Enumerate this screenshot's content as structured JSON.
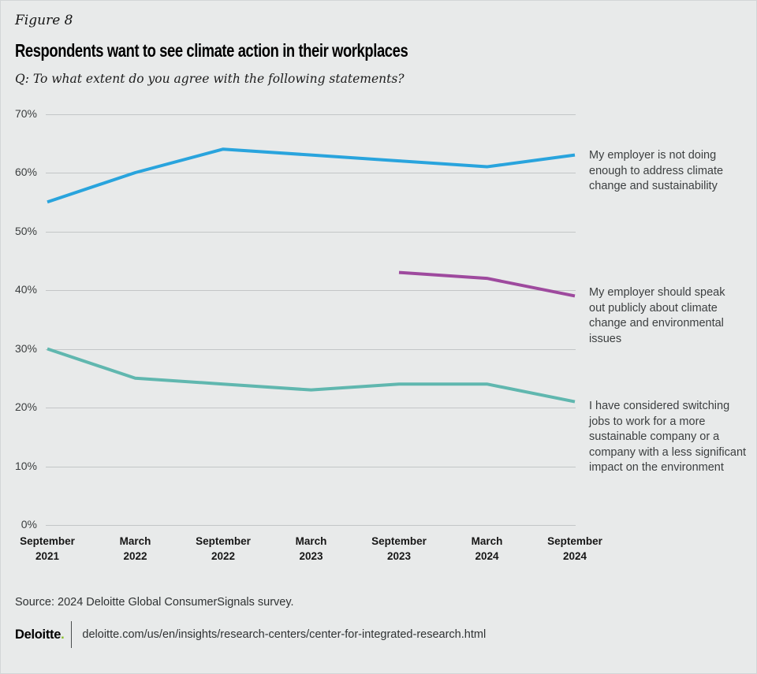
{
  "header": {
    "figure_label": "Figure 8",
    "title": "Respondents want to see climate action in their workplaces",
    "question": "Q: To what extent do you agree with the following statements?"
  },
  "chart_data": {
    "type": "line",
    "x": [
      "September 2021",
      "March 2022",
      "September 2022",
      "March 2023",
      "September 2023",
      "March 2024",
      "September 2024"
    ],
    "x_labels": [
      [
        "September",
        "2021"
      ],
      [
        "March",
        "2022"
      ],
      [
        "September",
        "2022"
      ],
      [
        "March",
        "2023"
      ],
      [
        "September",
        "2023"
      ],
      [
        "March",
        "2024"
      ],
      [
        "September",
        "2024"
      ]
    ],
    "y_ticks": [
      0,
      10,
      20,
      30,
      40,
      50,
      60,
      70
    ],
    "y_tick_labels": [
      "0%",
      "10%",
      "20%",
      "30%",
      "40%",
      "50%",
      "60%",
      "70%"
    ],
    "ylim": [
      0,
      70
    ],
    "unit": "%",
    "grid": "horizontal",
    "legend_position": "right-annotations",
    "series": [
      {
        "name": "employer-not-doing-enough",
        "label": "My employer is not doing enough to address climate change and sustainability",
        "color": "#29a4dd",
        "values": [
          55,
          60,
          64,
          63,
          62,
          61,
          63
        ]
      },
      {
        "name": "employer-should-speak-out",
        "label": "My employer should speak out publicly about climate change and environmental issues",
        "color": "#9e4a9e",
        "values": [
          null,
          null,
          null,
          null,
          43,
          42,
          39
        ]
      },
      {
        "name": "considered-switching-jobs",
        "label": "I have considered switching jobs to work for a more sustainable company or a company with a less significant impact on the environment",
        "color": "#60b7af",
        "values": [
          30,
          25,
          24,
          23,
          24,
          24,
          21
        ]
      }
    ]
  },
  "theme": {
    "background": "#e8eaea",
    "gridline": "#c3c6c7",
    "brand_green": "#86BC25"
  },
  "footer": {
    "source": "Source: 2024 Deloitte Global ConsumerSignals survey.",
    "logo_text": "Deloitte",
    "logo_dot": ".",
    "url": "deloitte.com/us/en/insights/research-centers/center-for-integrated-research.html"
  }
}
